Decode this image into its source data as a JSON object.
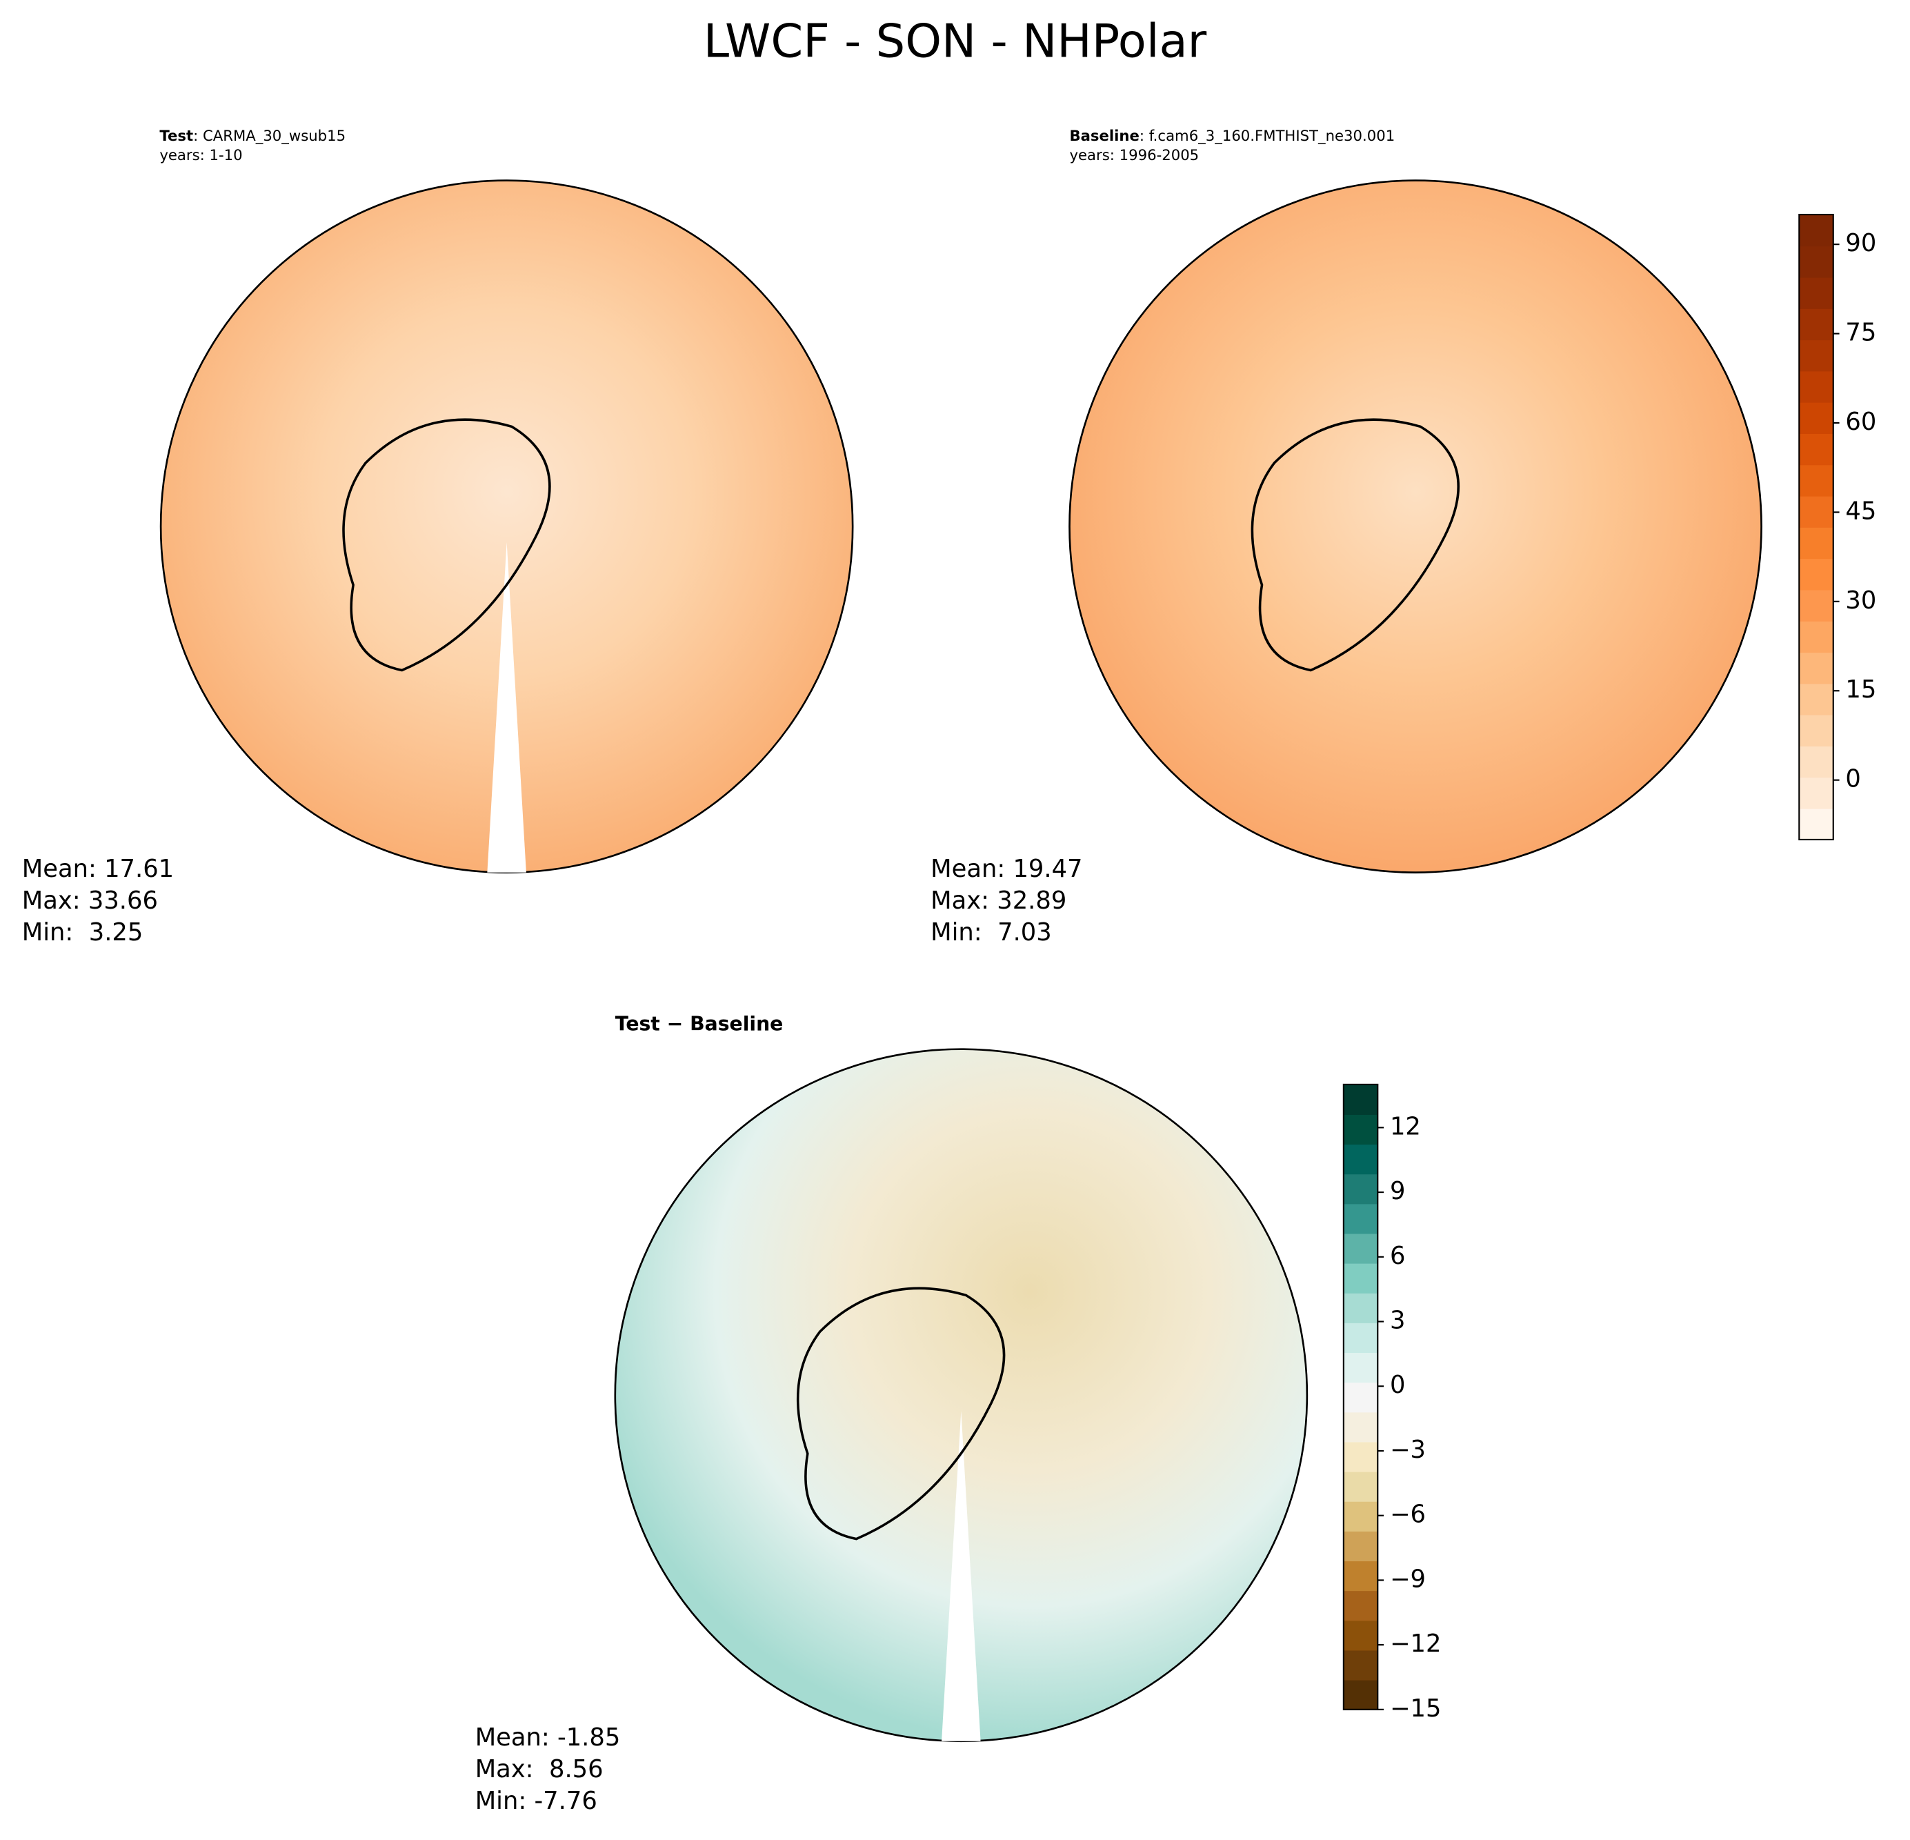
{
  "chart_data": [
    {
      "type": "polar-map",
      "title": "LWCF - SON - NHPolar",
      "label_bold": "Test",
      "label_rest": ": CARMA_30_wsub15",
      "label_years": "years: 1-10",
      "stats": [
        "Mean: 17.61",
        "Max: 33.66",
        "Min:  3.25"
      ]
    },
    {
      "type": "polar-map",
      "label_bold": "Baseline",
      "label_rest": ": f.cam6_3_160.FMTHIST_ne30.001",
      "label_years": "years: 1996-2005",
      "stats": [
        "Mean: 19.47",
        "Max: 32.89",
        "Min:  7.03"
      ],
      "colorbar": {
        "ylim": [
          -10,
          95
        ],
        "yticks": [
          0,
          15,
          30,
          45,
          60,
          75,
          90
        ],
        "colors": [
          "#fff5eb",
          "#fee9d4",
          "#fde0c2",
          "#fdd3a9",
          "#fdc692",
          "#fdb77a",
          "#fda762",
          "#fd974e",
          "#fd8c3b",
          "#f77f2a",
          "#f06f1e",
          "#e6600f",
          "#db5207",
          "#cd4602",
          "#bf3e02",
          "#ae3702",
          "#a03203",
          "#912c03",
          "#852904",
          "#7f2704"
        ]
      }
    },
    {
      "type": "polar-map",
      "label_bold": "Test",
      "label_rest": " − Baseline",
      "stats": [
        "Mean: -1.85",
        "Max:  8.56",
        "Min: -7.76"
      ],
      "colorbar": {
        "ylim": [
          -15,
          14
        ],
        "yticks": [
          {
            "value": -15,
            "label": "−15"
          },
          {
            "value": -12,
            "label": "−12"
          },
          {
            "value": -9,
            "label": "−9"
          },
          {
            "value": -6,
            "label": "−6"
          },
          {
            "value": -3,
            "label": "−3"
          },
          0,
          3,
          6,
          9,
          12
        ],
        "colors": [
          "#543005",
          "#6f3f09",
          "#8c510a",
          "#a6621a",
          "#bf812d",
          "#cfa257",
          "#dfc27d",
          "#eadba8",
          "#f6e8c3",
          "#f5efdf",
          "#f5f5f5",
          "#e0f2ef",
          "#c7eae5",
          "#a7dcd3",
          "#80cdc1",
          "#5db3a8",
          "#35978f",
          "#1e7d75",
          "#01665e",
          "#00503f",
          "#003c30"
        ]
      }
    }
  ]
}
